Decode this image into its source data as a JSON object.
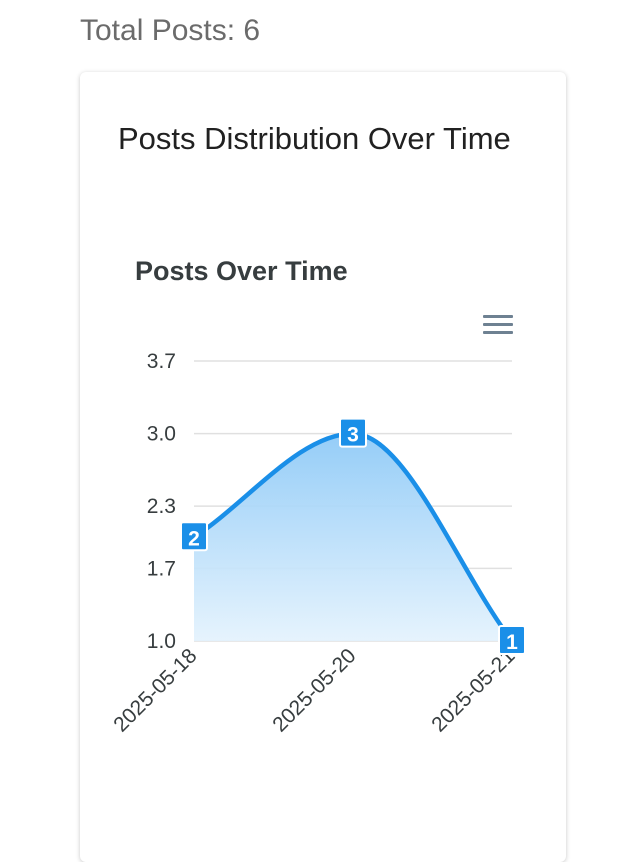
{
  "header": {
    "total_posts": "Total Posts: 6"
  },
  "card": {
    "title": "Posts Distribution Over Time"
  },
  "chart_data": {
    "type": "area",
    "title": "Posts Over Time",
    "categories": [
      "2025-05-18",
      "2025-05-20",
      "2025-05-21"
    ],
    "series": [
      {
        "values": [
          2,
          3,
          1
        ]
      }
    ],
    "y_ticks": [
      "1.0",
      "1.7",
      "2.3",
      "3.0",
      "3.7"
    ],
    "ylim": [
      1.0,
      3.7
    ],
    "grid": true,
    "curve": "smooth",
    "data_labels": true,
    "colors": {
      "line": "#1a8fe8",
      "fill_top": "#8fcaf7",
      "fill_bottom": "#e3f2fd",
      "label_bg": "#1a8fe8",
      "grid": "#e0e0e0"
    },
    "menu_icon": "hamburger-menu-icon"
  }
}
